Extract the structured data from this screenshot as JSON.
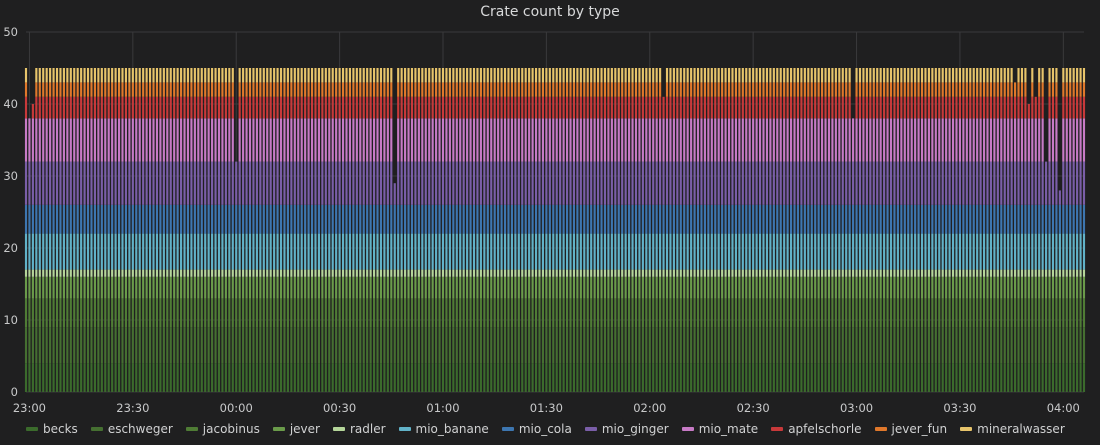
{
  "chart_data": {
    "type": "bar",
    "stacked": true,
    "title": "Crate count by type",
    "xlabel": "",
    "ylabel": "",
    "ylim": [
      0,
      50
    ],
    "yticks": [
      0,
      10,
      20,
      30,
      40,
      50
    ],
    "xlim": [
      "22:59:00",
      "04:06:00"
    ],
    "xticks": [
      "23:00",
      "23:30",
      "00:00",
      "00:30",
      "01:00",
      "01:30",
      "02:00",
      "02:30",
      "03:00",
      "03:30",
      "04:00"
    ],
    "grid": true,
    "legend_position": "bottom",
    "series": [
      {
        "name": "becks",
        "color": "#3b6b2c",
        "value": 4
      },
      {
        "name": "eschweger",
        "color": "#456f31",
        "value": 5
      },
      {
        "name": "jacobinus",
        "color": "#4f7c35",
        "value": 4
      },
      {
        "name": "jever",
        "color": "#6a9b4a",
        "value": 3
      },
      {
        "name": "radler",
        "color": "#b5d69a",
        "value": 1
      },
      {
        "name": "mio_banane",
        "color": "#61b2c8",
        "value": 5
      },
      {
        "name": "mio_cola",
        "color": "#3d76b0",
        "value": 4
      },
      {
        "name": "mio_ginger",
        "color": "#7a5ea8",
        "value": 6
      },
      {
        "name": "mio_mate",
        "color": "#c77ac6",
        "value": 6
      },
      {
        "name": "apfelschorle",
        "color": "#c8393a",
        "value": 3
      },
      {
        "name": "jever_fun",
        "color": "#e0782b",
        "value": 2
      },
      {
        "name": "mineralwasser",
        "color": "#e7c46b",
        "value": 2
      }
    ],
    "reduced_bars": [
      {
        "time": "23:00",
        "total": 38
      },
      {
        "time": "23:01",
        "total": 40
      },
      {
        "time": "00:00",
        "total": 32
      },
      {
        "time": "00:46",
        "total": 29
      },
      {
        "time": "02:04",
        "total": 41
      },
      {
        "time": "02:59",
        "total": 38
      },
      {
        "time": "03:46",
        "total": 43
      },
      {
        "time": "03:50",
        "total": 40
      },
      {
        "time": "03:52",
        "total": 41
      },
      {
        "time": "03:55",
        "total": 32
      },
      {
        "time": "03:59",
        "total": 28
      }
    ]
  }
}
